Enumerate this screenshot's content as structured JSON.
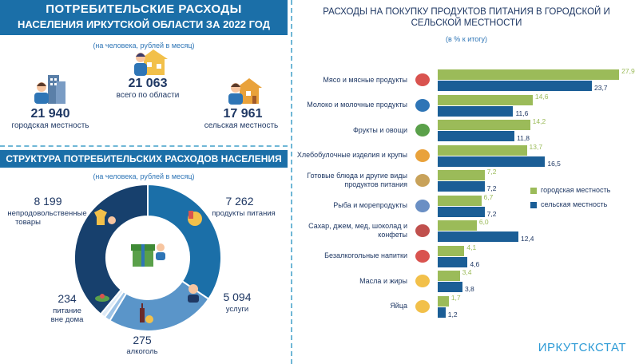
{
  "left": {
    "title_line1": "ПОТРЕБИТЕЛЬСКИЕ РАСХОДЫ",
    "title_line2": "НАСЕЛЕНИЯ ИРКУТСКОЙ ОБЛАСТИ ЗА 2022 ГОД",
    "note": "(на человека, рублей в месяц)",
    "total": {
      "value": "21 063",
      "label": "всего по области"
    },
    "urban": {
      "value": "21 940",
      "label": "городская местность"
    },
    "rural": {
      "value": "17 961",
      "label": "сельская местность"
    },
    "structure_title": "СТРУКТУРА ПОТРЕБИТЕЛЬСКИХ РАСХОДОВ НАСЕЛЕНИЯ",
    "structure_note": "(на человека, рублей в месяц)",
    "colors": {
      "header": "#1b6fa8",
      "accent": "#2e75b6"
    }
  },
  "donut": {
    "segments": [
      {
        "name": "продукты питания",
        "value": 7262,
        "display": "7 262",
        "color": "#1b6fa8"
      },
      {
        "name": "услуги",
        "value": 5094,
        "display": "5 094",
        "color": "#5a95c9"
      },
      {
        "name": "алкоголь",
        "value": 275,
        "display": "275",
        "color": "#9dc3e6"
      },
      {
        "name": "питание вне дома",
        "value": 234,
        "display": "234",
        "color": "#deebf7"
      },
      {
        "name": "непродовольственные товары",
        "value": 8199,
        "display": "8 199",
        "color": "#17406d"
      }
    ],
    "labels": {
      "food_lbl": "продукты питания",
      "services_lbl": "услуги",
      "alcohol_lbl": "алкоголь",
      "dining_lbl1": "питание",
      "dining_lbl2": "вне дома",
      "nonfood_lbl1": "непродовольственные",
      "nonfood_lbl2": "товары"
    }
  },
  "chart_data": {
    "type": "bar",
    "title": "РАСХОДЫ НА ПОКУПКУ ПРОДУКТОВ ПИТАНИЯ В ГОРОДСКОЙ И СЕЛЬСКОЙ МЕСТНОСТИ",
    "subtitle": "(в % к итогу)",
    "orientation": "horizontal",
    "categories": [
      "Мясо и мясные продукты",
      "Молоко и молочные продукты",
      "Фрукты и овощи",
      "Хлебобулочные изделия и крупы",
      "Готовые блюда и другие виды продуктов питания",
      "Рыба и морепродукты",
      "Сахар, джем, мед, шоколад и конфеты",
      "Безалкогольные напитки",
      "Масла и жиры",
      "Яйца"
    ],
    "category_lines": [
      [
        "Мясо и мясные продукты"
      ],
      [
        "Молоко и молочные продукты"
      ],
      [
        "Фрукты и овощи"
      ],
      [
        "Хлебобулочные изделия и крупы"
      ],
      [
        "Готовые блюда и другие виды",
        "продуктов питания"
      ],
      [
        "Рыба и морепродукты"
      ],
      [
        "Сахар, джем, мед, шоколад и",
        "конфеты"
      ],
      [
        "Безалкогольные напитки"
      ],
      [
        "Масла и жиры"
      ],
      [
        "Яйца"
      ]
    ],
    "series": [
      {
        "name": "городская местность",
        "color": "#9bbb59",
        "label_color": "#9bbb59",
        "values": [
          27.9,
          14.6,
          14.2,
          13.7,
          7.2,
          6.7,
          6.0,
          4.1,
          3.4,
          1.7
        ],
        "labels": [
          "27,9",
          "14,6",
          "14,2",
          "13,7",
          "7,2",
          "6,7",
          "6,0",
          "4,1",
          "3,4",
          "1,7"
        ]
      },
      {
        "name": "сельская местность",
        "color": "#1b5e96",
        "label_color": "#1f3864",
        "values": [
          23.7,
          11.6,
          11.8,
          16.5,
          7.2,
          7.2,
          12.4,
          4.6,
          3.8,
          1.2
        ],
        "labels": [
          "23,7",
          "11,6",
          "11,8",
          "16,5",
          "7,2",
          "7,2",
          "12,4",
          "4,6",
          "3,8",
          "1,2"
        ]
      }
    ],
    "xlim": [
      0,
      28
    ],
    "legend_position": "right",
    "grid": false
  },
  "source": "ИРКУТСКСТАТ"
}
